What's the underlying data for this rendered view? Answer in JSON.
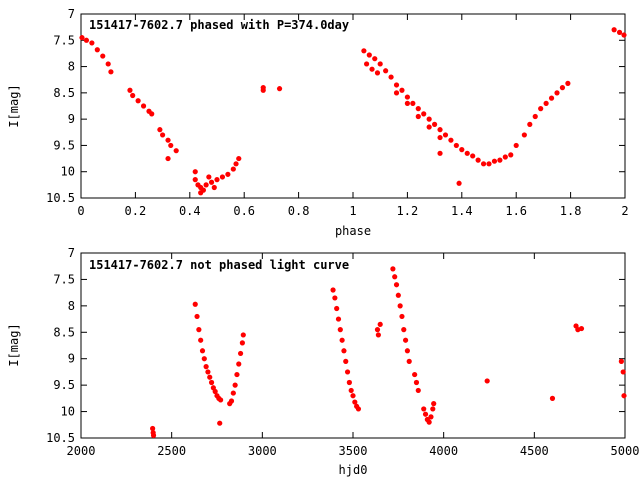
{
  "chart_data": [
    {
      "type": "scatter",
      "title": "151417-7602.7 phased with P=374.0day",
      "xlabel": "phase",
      "ylabel": "I[mag]",
      "xlim": [
        0,
        2
      ],
      "ylim": [
        10.5,
        7
      ],
      "y_inverted": true,
      "xticks": [
        "0",
        "0.2",
        "0.4",
        "0.6",
        "0.8",
        "1",
        "1.2",
        "1.4",
        "1.6",
        "1.8",
        "2"
      ],
      "yticks": [
        "7",
        "7.5",
        "8",
        "8.5",
        "9",
        "9.5",
        "10",
        "10.5"
      ],
      "grid": false,
      "marker_color": "#ff0000",
      "series": [
        {
          "points": [
            [
              0.0,
              7.45
            ],
            [
              0.02,
              7.5
            ],
            [
              0.04,
              7.55
            ],
            [
              0.06,
              7.68
            ],
            [
              0.08,
              7.8
            ],
            [
              0.1,
              7.95
            ],
            [
              0.11,
              8.1
            ],
            [
              0.18,
              8.45
            ],
            [
              0.19,
              8.55
            ],
            [
              0.21,
              8.65
            ],
            [
              0.23,
              8.75
            ],
            [
              0.25,
              8.85
            ],
            [
              0.26,
              8.9
            ],
            [
              0.29,
              9.2
            ],
            [
              0.3,
              9.3
            ],
            [
              0.32,
              9.4
            ],
            [
              0.33,
              9.5
            ],
            [
              0.35,
              9.6
            ],
            [
              0.32,
              9.75
            ],
            [
              0.42,
              10.0
            ],
            [
              0.42,
              10.15
            ],
            [
              0.43,
              10.25
            ],
            [
              0.44,
              10.3
            ],
            [
              0.45,
              10.35
            ],
            [
              0.46,
              10.25
            ],
            [
              0.48,
              10.2
            ],
            [
              0.5,
              10.15
            ],
            [
              0.52,
              10.1
            ],
            [
              0.54,
              10.05
            ],
            [
              0.56,
              9.95
            ],
            [
              0.57,
              9.85
            ],
            [
              0.58,
              9.75
            ],
            [
              0.47,
              10.1
            ],
            [
              0.49,
              10.3
            ],
            [
              0.44,
              10.4
            ],
            [
              0.67,
              8.4
            ],
            [
              0.67,
              8.45
            ],
            [
              0.73,
              8.42
            ],
            [
              1.04,
              7.7
            ],
            [
              1.06,
              7.78
            ],
            [
              1.08,
              7.85
            ],
            [
              1.1,
              7.95
            ],
            [
              1.12,
              8.08
            ],
            [
              1.05,
              7.95
            ],
            [
              1.07,
              8.05
            ],
            [
              1.09,
              8.12
            ],
            [
              1.14,
              8.2
            ],
            [
              1.16,
              8.35
            ],
            [
              1.18,
              8.45
            ],
            [
              1.2,
              8.58
            ],
            [
              1.22,
              8.7
            ],
            [
              1.24,
              8.8
            ],
            [
              1.26,
              8.9
            ],
            [
              1.28,
              9.0
            ],
            [
              1.3,
              9.1
            ],
            [
              1.32,
              9.2
            ],
            [
              1.34,
              9.3
            ],
            [
              1.36,
              9.4
            ],
            [
              1.16,
              8.5
            ],
            [
              1.2,
              8.7
            ],
            [
              1.24,
              8.95
            ],
            [
              1.28,
              9.15
            ],
            [
              1.32,
              9.35
            ],
            [
              1.38,
              9.5
            ],
            [
              1.4,
              9.58
            ],
            [
              1.42,
              9.65
            ],
            [
              1.44,
              9.7
            ],
            [
              1.46,
              9.78
            ],
            [
              1.48,
              9.85
            ],
            [
              1.5,
              9.85
            ],
            [
              1.52,
              9.8
            ],
            [
              1.54,
              9.78
            ],
            [
              1.56,
              9.72
            ],
            [
              1.58,
              9.68
            ],
            [
              1.32,
              9.65
            ],
            [
              1.39,
              10.22
            ],
            [
              1.6,
              9.5
            ],
            [
              1.63,
              9.3
            ],
            [
              1.65,
              9.1
            ],
            [
              1.67,
              8.95
            ],
            [
              1.69,
              8.8
            ],
            [
              1.71,
              8.7
            ],
            [
              1.73,
              8.6
            ],
            [
              1.75,
              8.5
            ],
            [
              1.77,
              8.4
            ],
            [
              1.79,
              8.32
            ],
            [
              1.96,
              7.3
            ],
            [
              1.98,
              7.35
            ],
            [
              2.0,
              7.4
            ]
          ]
        }
      ]
    },
    {
      "type": "scatter",
      "title": "151417-7602.7 not phased light curve",
      "xlabel": "hjd0",
      "ylabel": "I[mag]",
      "xlim": [
        2000,
        5000
      ],
      "ylim": [
        10.5,
        7
      ],
      "y_inverted": true,
      "xticks": [
        "2000",
        "2500",
        "3000",
        "3500",
        "4000",
        "4500",
        "5000"
      ],
      "yticks": [
        "7",
        "7.5",
        "8",
        "8.5",
        "9",
        "9.5",
        "10",
        "10.5"
      ],
      "grid": false,
      "marker_color": "#ff0000",
      "series": [
        {
          "points": [
            [
              2395,
              10.32
            ],
            [
              2398,
              10.4
            ],
            [
              2400,
              10.45
            ],
            [
              2630,
              7.97
            ],
            [
              2640,
              8.2
            ],
            [
              2650,
              8.45
            ],
            [
              2660,
              8.65
            ],
            [
              2670,
              8.85
            ],
            [
              2680,
              9.0
            ],
            [
              2690,
              9.15
            ],
            [
              2700,
              9.25
            ],
            [
              2710,
              9.35
            ],
            [
              2720,
              9.45
            ],
            [
              2730,
              9.55
            ],
            [
              2740,
              9.62
            ],
            [
              2750,
              9.7
            ],
            [
              2760,
              9.75
            ],
            [
              2770,
              9.78
            ],
            [
              2765,
              10.22
            ],
            [
              2820,
              9.85
            ],
            [
              2830,
              9.8
            ],
            [
              2840,
              9.65
            ],
            [
              2850,
              9.5
            ],
            [
              2860,
              9.3
            ],
            [
              2870,
              9.1
            ],
            [
              2880,
              8.9
            ],
            [
              2890,
              8.7
            ],
            [
              2895,
              8.55
            ],
            [
              3390,
              7.7
            ],
            [
              3400,
              7.85
            ],
            [
              3410,
              8.05
            ],
            [
              3420,
              8.25
            ],
            [
              3430,
              8.45
            ],
            [
              3440,
              8.65
            ],
            [
              3450,
              8.85
            ],
            [
              3460,
              9.05
            ],
            [
              3470,
              9.25
            ],
            [
              3480,
              9.45
            ],
            [
              3490,
              9.6
            ],
            [
              3500,
              9.7
            ],
            [
              3510,
              9.82
            ],
            [
              3520,
              9.9
            ],
            [
              3530,
              9.95
            ],
            [
              3635,
              8.45
            ],
            [
              3640,
              8.55
            ],
            [
              3650,
              8.35
            ],
            [
              3720,
              7.3
            ],
            [
              3730,
              7.45
            ],
            [
              3740,
              7.6
            ],
            [
              3750,
              7.8
            ],
            [
              3760,
              8.0
            ],
            [
              3770,
              8.2
            ],
            [
              3780,
              8.45
            ],
            [
              3790,
              8.65
            ],
            [
              3800,
              8.85
            ],
            [
              3810,
              9.05
            ],
            [
              3840,
              9.3
            ],
            [
              3850,
              9.45
            ],
            [
              3860,
              9.6
            ],
            [
              3890,
              9.95
            ],
            [
              3900,
              10.05
            ],
            [
              3910,
              10.15
            ],
            [
              3920,
              10.2
            ],
            [
              3930,
              10.1
            ],
            [
              3940,
              9.95
            ],
            [
              3945,
              9.85
            ],
            [
              4240,
              9.42
            ],
            [
              4600,
              9.75
            ],
            [
              4730,
              8.38
            ],
            [
              4740,
              8.45
            ],
            [
              4760,
              8.43
            ],
            [
              4980,
              9.05
            ],
            [
              4990,
              9.25
            ],
            [
              5000,
              9.7
            ]
          ]
        }
      ]
    }
  ]
}
